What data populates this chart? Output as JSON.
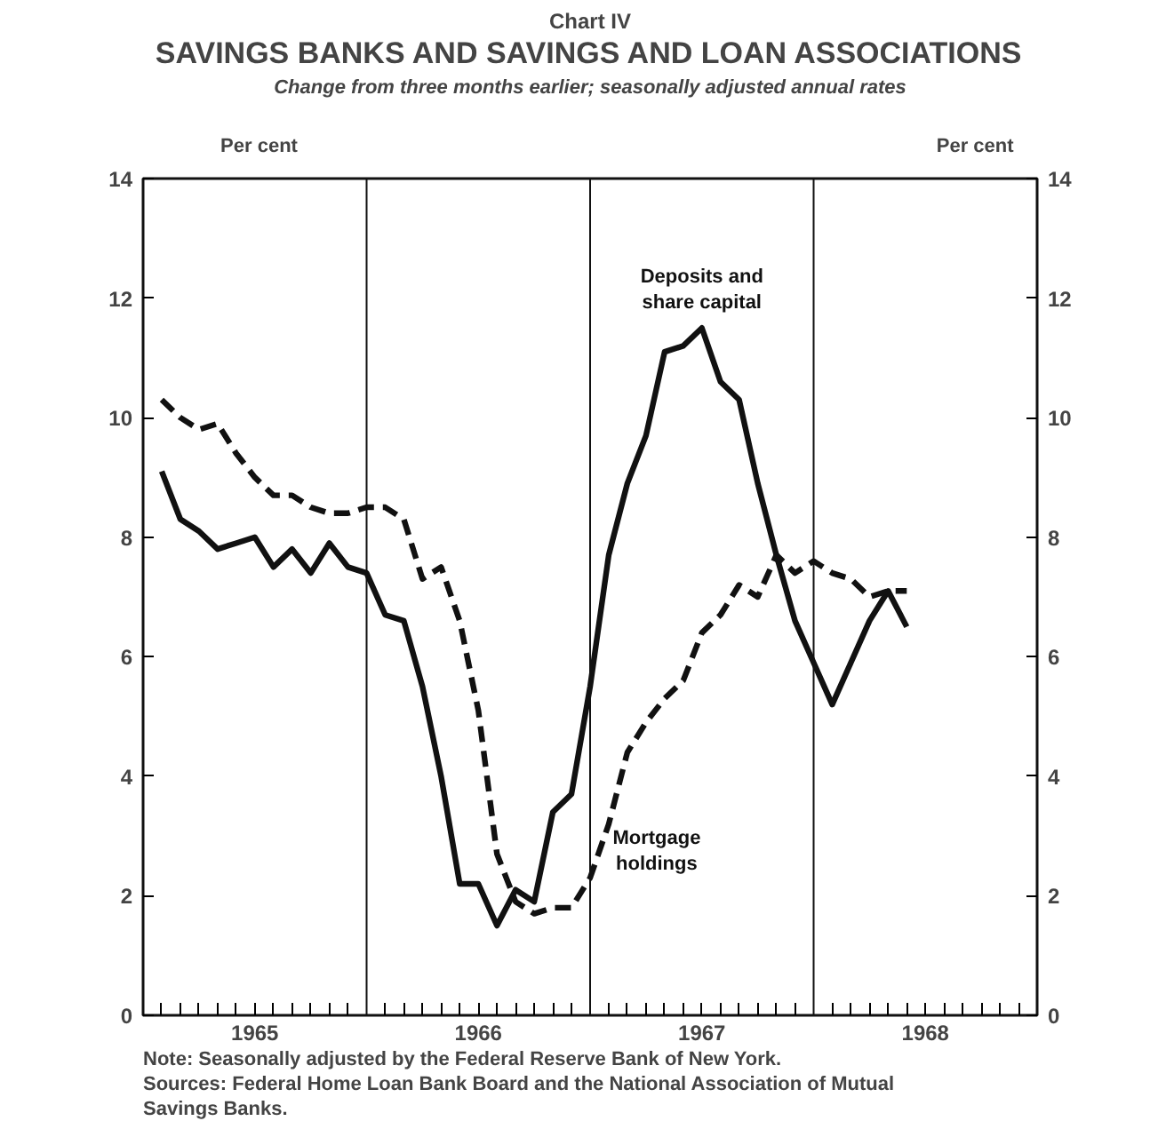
{
  "chart_data": {
    "type": "line",
    "title": "SAVINGS BANKS AND SAVINGS AND LOAN ASSOCIATIONS",
    "subtitle": "Change from three months earlier; seasonally adjusted annual rates",
    "ylabel": "Per cent",
    "y2label": "Per cent",
    "annotations": [
      "Chart IV",
      "Note:  Seasonally adjusted by the Federal Reserve Bank of New York.",
      "Sources:  Federal Home Loan Bank Board and the National Association of Mutual Savings Banks."
    ],
    "x": [
      "1965-02",
      "1965-03",
      "1965-04",
      "1965-05",
      "1965-06",
      "1965-07",
      "1965-08",
      "1965-09",
      "1965-10",
      "1965-11",
      "1965-12",
      "1966-01",
      "1966-02",
      "1966-03",
      "1966-04",
      "1966-05",
      "1966-06",
      "1966-07",
      "1966-08",
      "1966-09",
      "1966-10",
      "1966-11",
      "1966-12",
      "1967-01",
      "1967-02",
      "1967-03",
      "1967-04",
      "1967-05",
      "1967-06",
      "1967-07",
      "1967-08",
      "1967-09",
      "1967-10",
      "1967-11",
      "1967-12",
      "1968-01",
      "1968-02",
      "1968-03",
      "1968-04",
      "1968-05",
      "1968-06"
    ],
    "series": [
      {
        "name": "Deposits and share capital",
        "color": "#111111",
        "line_style": "solid",
        "values": [
          9.1,
          8.3,
          8.1,
          7.8,
          7.9,
          8.0,
          7.5,
          7.8,
          7.4,
          7.9,
          7.5,
          7.4,
          6.7,
          6.6,
          5.5,
          4.0,
          2.2,
          2.2,
          1.5,
          2.1,
          1.9,
          3.4,
          3.7,
          5.5,
          7.7,
          8.9,
          9.7,
          11.1,
          11.2,
          11.5,
          10.6,
          10.3,
          8.9,
          7.7,
          6.6,
          5.9,
          5.2,
          5.9,
          6.6,
          7.1,
          6.5
        ]
      },
      {
        "name": "Mortgage holdings",
        "color": "#111111",
        "line_style": "dashed",
        "values": [
          10.3,
          10.0,
          9.8,
          9.9,
          9.4,
          9.0,
          8.7,
          8.7,
          8.5,
          8.4,
          8.4,
          8.5,
          8.5,
          8.3,
          7.3,
          7.5,
          6.6,
          5.1,
          2.7,
          1.9,
          1.7,
          1.8,
          1.8,
          2.3,
          3.2,
          4.4,
          4.9,
          5.3,
          5.6,
          6.4,
          6.7,
          7.2,
          7.0,
          7.7,
          7.4,
          7.6,
          7.4,
          7.3,
          7.0,
          7.1,
          7.1
        ]
      }
    ],
    "xlim": [
      "1965-01",
      "1969-01"
    ],
    "xticks": [
      {
        "value": "1965-02",
        "label": null
      },
      {
        "value": "1965-03",
        "label": null
      },
      {
        "value": "1965-04",
        "label": null
      },
      {
        "value": "1965-05",
        "label": null
      },
      {
        "value": "1965-06",
        "label": null
      },
      {
        "value": "1965-07",
        "label": "1965"
      },
      {
        "value": "1965-08",
        "label": null
      },
      {
        "value": "1965-09",
        "label": null
      },
      {
        "value": "1965-10",
        "label": null
      },
      {
        "value": "1965-11",
        "label": null
      },
      {
        "value": "1965-12",
        "label": null
      },
      {
        "value": "1966-02",
        "label": null
      },
      {
        "value": "1966-03",
        "label": null
      },
      {
        "value": "1966-04",
        "label": null
      },
      {
        "value": "1966-05",
        "label": null
      },
      {
        "value": "1966-06",
        "label": null
      },
      {
        "value": "1966-07",
        "label": "1966"
      },
      {
        "value": "1966-08",
        "label": null
      },
      {
        "value": "1966-09",
        "label": null
      },
      {
        "value": "1966-10",
        "label": null
      },
      {
        "value": "1966-11",
        "label": null
      },
      {
        "value": "1966-12",
        "label": null
      },
      {
        "value": "1967-02",
        "label": null
      },
      {
        "value": "1967-03",
        "label": null
      },
      {
        "value": "1967-04",
        "label": null
      },
      {
        "value": "1967-05",
        "label": null
      },
      {
        "value": "1967-06",
        "label": null
      },
      {
        "value": "1967-07",
        "label": "1967"
      },
      {
        "value": "1967-08",
        "label": null
      },
      {
        "value": "1967-09",
        "label": null
      },
      {
        "value": "1967-10",
        "label": null
      },
      {
        "value": "1967-11",
        "label": null
      },
      {
        "value": "1967-12",
        "label": null
      },
      {
        "value": "1968-02",
        "label": null
      },
      {
        "value": "1968-03",
        "label": null
      },
      {
        "value": "1968-04",
        "label": null
      },
      {
        "value": "1968-05",
        "label": null
      },
      {
        "value": "1968-06",
        "label": null
      },
      {
        "value": "1968-07",
        "label": "1968"
      },
      {
        "value": "1968-08",
        "label": null
      },
      {
        "value": "1968-09",
        "label": null
      },
      {
        "value": "1968-10",
        "label": null
      },
      {
        "value": "1968-11",
        "label": null
      },
      {
        "value": "1968-12",
        "label": null
      }
    ],
    "ylim": [
      0,
      14
    ],
    "yticks": [
      0,
      2,
      4,
      6,
      8,
      10,
      12,
      14
    ],
    "y2lim": [
      0,
      14
    ],
    "y2ticks": [
      0,
      2,
      4,
      6,
      8,
      10,
      12,
      14
    ],
    "ref_lines": [
      {
        "axis": "x",
        "value": "1966-01",
        "color": "#111111"
      },
      {
        "axis": "x",
        "value": "1967-01",
        "color": "#111111"
      },
      {
        "axis": "x",
        "value": "1968-01",
        "color": "#111111"
      }
    ],
    "grid": false,
    "legend": false
  }
}
